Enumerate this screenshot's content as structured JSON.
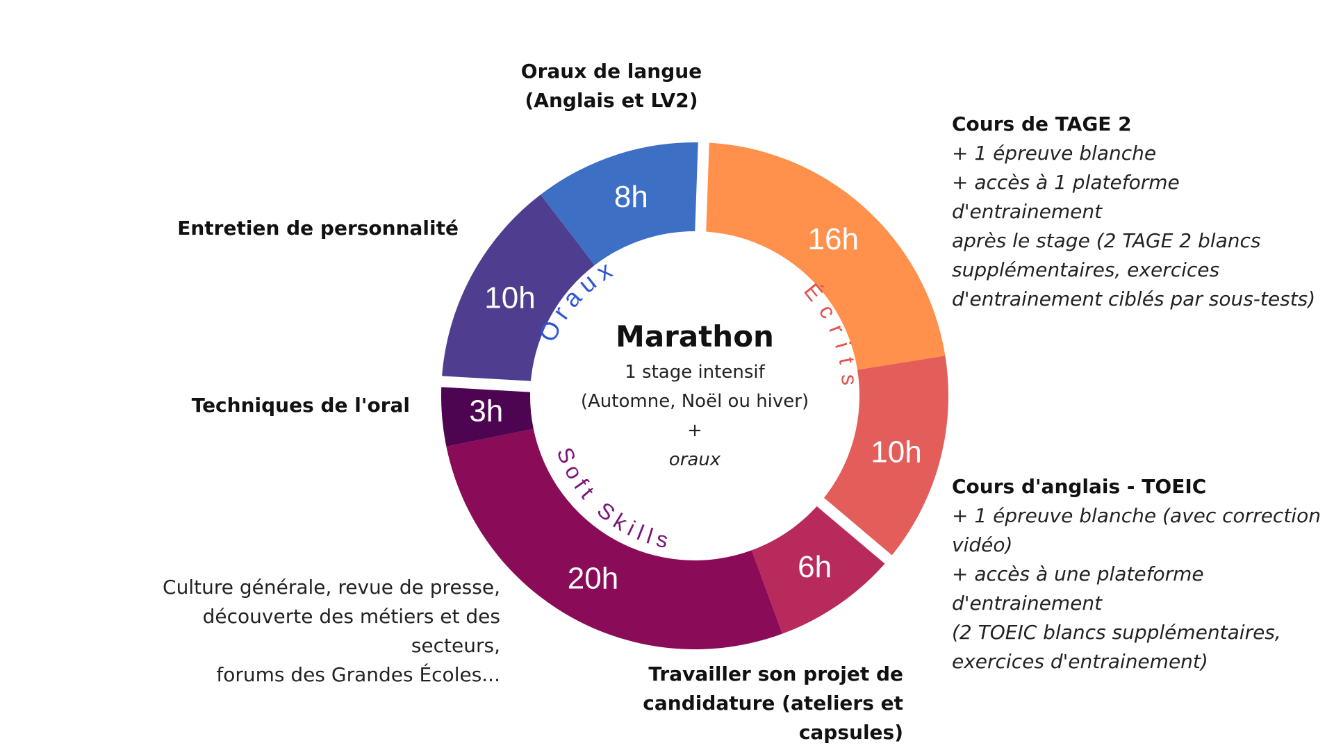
{
  "chart_data": {
    "type": "pie",
    "donut": true,
    "unit": "h",
    "slices": [
      {
        "key": "tage2",
        "value": 16,
        "label": "16h",
        "color": "#FF914D"
      },
      {
        "key": "toeic",
        "value": 10,
        "label": "10h",
        "color": "#E35D5B"
      },
      {
        "key": "projet",
        "value": 6,
        "label": "6h",
        "color": "#B82A5C"
      },
      {
        "key": "culture",
        "value": 20,
        "label": "20h",
        "color": "#8A0B57"
      },
      {
        "key": "techniques",
        "value": 3,
        "label": "3h",
        "color": "#4D0552"
      },
      {
        "key": "entretien",
        "value": 10,
        "label": "10h",
        "color": "#4F3D8F"
      },
      {
        "key": "langue",
        "value": 8,
        "label": "8h",
        "color": "#3D6FC4"
      }
    ],
    "groups": [
      {
        "key": "ecrits",
        "label": "Écrits",
        "color": "#E0524D",
        "slices": [
          "tage2",
          "toeic"
        ]
      },
      {
        "key": "soft",
        "label": "Soft Skills",
        "color": "#7B1479",
        "slices": [
          "projet",
          "culture",
          "techniques"
        ]
      },
      {
        "key": "oraux",
        "label": "Oraux",
        "color": "#2F55D4",
        "slices": [
          "entretien",
          "langue"
        ]
      }
    ]
  },
  "center": {
    "title": "Marathon",
    "line1": "1 stage intensif",
    "line2": "(Automne, Noël ou hiver)",
    "plus": "+",
    "italic": "oraux"
  },
  "labels": {
    "tage2": {
      "title": "Cours de TAGE 2",
      "detail": [
        "+ 1 épreuve blanche",
        "+ accès à 1 plateforme d'entrainement",
        "après le stage (2 TAGE 2 blancs",
        "supplémentaires, exercices",
        "d'entrainement ciblés par sous-tests)"
      ]
    },
    "toeic": {
      "title": "Cours d'anglais - TOEIC",
      "detail": [
        "+ 1 épreuve blanche (avec correction",
        "vidéo)",
        "+ accès à une plateforme d'entrainement",
        "(2 TOEIC blancs supplémentaires,",
        "exercices d'entrainement)"
      ]
    },
    "projet": {
      "title": [
        "Travailler son projet de",
        "candidature (ateliers et",
        "capsules)"
      ]
    },
    "culture": {
      "detail": [
        "Culture générale, revue de presse,",
        "découverte des métiers et des secteurs,",
        "forums des Grandes Écoles..."
      ]
    },
    "techniques": {
      "title": "Techniques de l'oral"
    },
    "entretien": {
      "title": "Entretien de personnalité"
    },
    "langue": {
      "title": [
        "Oraux de langue",
        "(Anglais et LV2)"
      ]
    }
  }
}
